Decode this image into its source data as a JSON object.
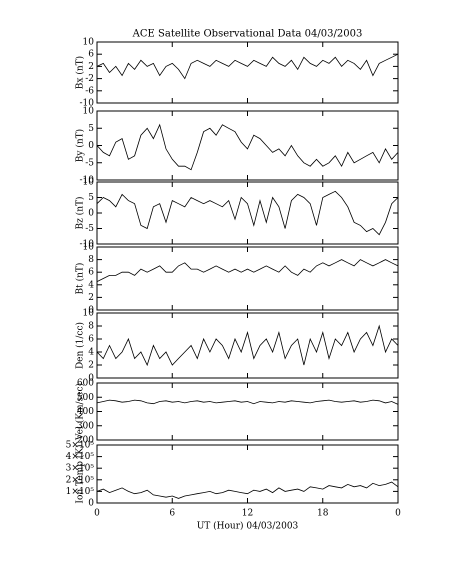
{
  "chart_data": [
    {
      "type": "line",
      "title": "ACE Satellite Observational Data   04/03/2003",
      "ylabel": "Bx (nT)",
      "xlim": [
        0,
        24
      ],
      "xticks": [
        0,
        6,
        12,
        18,
        {
          "value": 24,
          "label": "0"
        }
      ],
      "ylim": [
        -10,
        10
      ],
      "yticks": [
        -10,
        -6,
        -2,
        2,
        6,
        10
      ],
      "color": "#000000",
      "x": [
        0,
        0.5,
        1,
        1.5,
        2,
        2.5,
        3,
        3.5,
        4,
        4.5,
        5,
        5.5,
        6,
        6.5,
        7,
        7.5,
        8,
        8.5,
        9,
        9.5,
        10,
        10.5,
        11,
        11.5,
        12,
        12.5,
        13,
        13.5,
        14,
        14.5,
        15,
        15.5,
        16,
        16.5,
        17,
        17.5,
        18,
        18.5,
        19,
        19.5,
        20,
        20.5,
        21,
        21.5,
        22,
        22.5,
        23,
        23.5,
        24
      ],
      "values": [
        2,
        3,
        0,
        2,
        -1,
        3,
        1,
        4,
        2,
        3,
        -1,
        2,
        3,
        1,
        -2,
        3,
        4,
        3,
        2,
        4,
        3,
        2,
        4,
        3,
        2,
        4,
        3,
        2,
        5,
        3,
        2,
        4,
        1,
        5,
        3,
        2,
        4,
        3,
        5,
        2,
        4,
        3,
        1,
        4,
        -1,
        3,
        4,
        5,
        6
      ]
    },
    {
      "type": "line",
      "ylabel": "By (nT)",
      "xlim": [
        0,
        24
      ],
      "xticks": [
        0,
        6,
        12,
        18,
        {
          "value": 24,
          "label": "0"
        }
      ],
      "ylim": [
        -10,
        10
      ],
      "yticks": [
        -10,
        -5,
        0,
        5,
        10
      ],
      "color": "#000000",
      "x": [
        0,
        0.5,
        1,
        1.5,
        2,
        2.5,
        3,
        3.5,
        4,
        4.5,
        5,
        5.5,
        6,
        6.5,
        7,
        7.5,
        8,
        8.5,
        9,
        9.5,
        10,
        10.5,
        11,
        11.5,
        12,
        12.5,
        13,
        13.5,
        14,
        14.5,
        15,
        15.5,
        16,
        16.5,
        17,
        17.5,
        18,
        18.5,
        19,
        19.5,
        20,
        20.5,
        21,
        21.5,
        22,
        22.5,
        23,
        23.5,
        24
      ],
      "values": [
        0,
        -2,
        -3,
        1,
        2,
        -4,
        -3,
        3,
        5,
        2,
        6,
        -1,
        -4,
        -6,
        -6,
        -7,
        -2,
        4,
        5,
        3,
        6,
        5,
        4,
        1,
        -1,
        3,
        2,
        0,
        -2,
        -1,
        -3,
        0,
        -3,
        -5,
        -6,
        -4,
        -6,
        -5,
        -3,
        -6,
        -2,
        -5,
        -4,
        -3,
        -2,
        -5,
        -1,
        -4,
        -2
      ]
    },
    {
      "type": "line",
      "ylabel": "Bz (nT)",
      "xlim": [
        0,
        24
      ],
      "xticks": [
        0,
        6,
        12,
        18,
        {
          "value": 24,
          "label": "0"
        }
      ],
      "ylim": [
        -10,
        10
      ],
      "yticks": [
        -10,
        -5,
        0,
        5,
        10
      ],
      "color": "#000000",
      "x": [
        0,
        0.5,
        1,
        1.5,
        2,
        2.5,
        3,
        3.5,
        4,
        4.5,
        5,
        5.5,
        6,
        6.5,
        7,
        7.5,
        8,
        8.5,
        9,
        9.5,
        10,
        10.5,
        11,
        11.5,
        12,
        12.5,
        13,
        13.5,
        14,
        14.5,
        15,
        15.5,
        16,
        16.5,
        17,
        17.5,
        18,
        18.5,
        19,
        19.5,
        20,
        20.5,
        21,
        21.5,
        22,
        22.5,
        23,
        23.5,
        24
      ],
      "values": [
        3,
        5,
        4,
        2,
        6,
        4,
        3,
        -4,
        -5,
        2,
        3,
        -3,
        4,
        3,
        2,
        5,
        4,
        3,
        4,
        3,
        2,
        4,
        -2,
        5,
        3,
        -4,
        4,
        -3,
        5,
        2,
        -5,
        4,
        6,
        5,
        3,
        -4,
        5,
        6,
        7,
        5,
        2,
        -3,
        -4,
        -6,
        -5,
        -7,
        -3,
        3,
        5
      ]
    },
    {
      "type": "line",
      "ylabel": "Bt (nT)",
      "xlim": [
        0,
        24
      ],
      "xticks": [
        0,
        6,
        12,
        18,
        {
          "value": 24,
          "label": "0"
        }
      ],
      "ylim": [
        0,
        10
      ],
      "yticks": [
        0,
        2,
        4,
        6,
        8,
        10
      ],
      "color": "#000000",
      "x": [
        0,
        0.5,
        1,
        1.5,
        2,
        2.5,
        3,
        3.5,
        4,
        4.5,
        5,
        5.5,
        6,
        6.5,
        7,
        7.5,
        8,
        8.5,
        9,
        9.5,
        10,
        10.5,
        11,
        11.5,
        12,
        12.5,
        13,
        13.5,
        14,
        14.5,
        15,
        15.5,
        16,
        16.5,
        17,
        17.5,
        18,
        18.5,
        19,
        19.5,
        20,
        20.5,
        21,
        21.5,
        22,
        22.5,
        23,
        23.5,
        24
      ],
      "values": [
        4.5,
        5,
        5.5,
        5.5,
        6,
        6,
        5.5,
        6.5,
        6,
        6.5,
        7,
        6,
        6,
        7,
        7.5,
        6.5,
        6.5,
        6,
        6.5,
        7,
        6.5,
        6,
        6.5,
        6,
        6.5,
        6,
        6.5,
        7,
        6.5,
        6,
        7,
        6,
        5.5,
        6.5,
        6,
        7,
        7.5,
        7,
        7.5,
        8,
        7.5,
        7,
        8,
        7.5,
        7,
        7.5,
        8,
        7.5,
        7
      ]
    },
    {
      "type": "line",
      "ylabel": "Den (1/cc)",
      "xlim": [
        0,
        24
      ],
      "xticks": [
        0,
        6,
        12,
        18,
        {
          "value": 24,
          "label": "0"
        }
      ],
      "ylim": [
        0,
        10
      ],
      "yticks": [
        0,
        2,
        4,
        6,
        8,
        10
      ],
      "color": "#000000",
      "x": [
        0,
        0.5,
        1,
        1.5,
        2,
        2.5,
        3,
        3.5,
        4,
        4.5,
        5,
        5.5,
        6,
        6.5,
        7,
        7.5,
        8,
        8.5,
        9,
        9.5,
        10,
        10.5,
        11,
        11.5,
        12,
        12.5,
        13,
        13.5,
        14,
        14.5,
        15,
        15.5,
        16,
        16.5,
        17,
        17.5,
        18,
        18.5,
        19,
        19.5,
        20,
        20.5,
        21,
        21.5,
        22,
        22.5,
        23,
        23.5,
        24
      ],
      "values": [
        4,
        3,
        5,
        3,
        4,
        6,
        3,
        4,
        2,
        5,
        3,
        4,
        2,
        3,
        4,
        5,
        3,
        6,
        4,
        6,
        5,
        3,
        6,
        4,
        7,
        3,
        5,
        6,
        4,
        7,
        3,
        5,
        6,
        2,
        6,
        4,
        7,
        3,
        6,
        5,
        7,
        4,
        6,
        7,
        5,
        8,
        4,
        6,
        5
      ]
    },
    {
      "type": "line",
      "ylabel": "Vel (Km/sec)",
      "xlim": [
        0,
        24
      ],
      "xticks": [
        0,
        6,
        12,
        18,
        {
          "value": 24,
          "label": "0"
        }
      ],
      "ylim": [
        200,
        600
      ],
      "yticks": [
        200,
        300,
        400,
        500,
        600
      ],
      "color": "#000000",
      "x": [
        0,
        0.5,
        1,
        1.5,
        2,
        2.5,
        3,
        3.5,
        4,
        4.5,
        5,
        5.5,
        6,
        6.5,
        7,
        7.5,
        8,
        8.5,
        9,
        9.5,
        10,
        10.5,
        11,
        11.5,
        12,
        12.5,
        13,
        13.5,
        14,
        14.5,
        15,
        15.5,
        16,
        16.5,
        17,
        17.5,
        18,
        18.5,
        19,
        19.5,
        20,
        20.5,
        21,
        21.5,
        22,
        22.5,
        23,
        23.5,
        24
      ],
      "values": [
        460,
        470,
        480,
        475,
        465,
        470,
        480,
        475,
        460,
        455,
        470,
        475,
        465,
        470,
        460,
        470,
        475,
        465,
        470,
        460,
        465,
        470,
        475,
        465,
        470,
        455,
        470,
        465,
        460,
        470,
        465,
        475,
        470,
        465,
        460,
        470,
        475,
        480,
        470,
        465,
        470,
        475,
        465,
        470,
        480,
        475,
        460,
        470,
        450
      ]
    },
    {
      "type": "line",
      "ylabel": "Ion Temp (K)",
      "xlabel": "UT (Hour)   04/03/2003",
      "xlim": [
        0,
        24
      ],
      "xticks": [
        0,
        6,
        12,
        18,
        {
          "value": 24,
          "label": "0"
        }
      ],
      "ylim": [
        0,
        500000
      ],
      "yticks": [
        0,
        {
          "value": 100000,
          "label": "1×10⁵"
        },
        {
          "value": 200000,
          "label": "2×10⁵"
        },
        {
          "value": 300000,
          "label": "3×10⁵"
        },
        {
          "value": 400000,
          "label": "4×10⁵"
        },
        {
          "value": 500000,
          "label": "5×10⁵"
        }
      ],
      "color": "#000000",
      "x": [
        0,
        0.5,
        1,
        1.5,
        2,
        2.5,
        3,
        3.5,
        4,
        4.5,
        5,
        5.5,
        6,
        6.5,
        7,
        7.5,
        8,
        8.5,
        9,
        9.5,
        10,
        10.5,
        11,
        11.5,
        12,
        12.5,
        13,
        13.5,
        14,
        14.5,
        15,
        15.5,
        16,
        16.5,
        17,
        17.5,
        18,
        18.5,
        19,
        19.5,
        20,
        20.5,
        21,
        21.5,
        22,
        22.5,
        23,
        23.5,
        24
      ],
      "values": [
        100000,
        120000,
        90000,
        110000,
        130000,
        100000,
        80000,
        90000,
        110000,
        70000,
        60000,
        50000,
        60000,
        40000,
        60000,
        70000,
        80000,
        90000,
        100000,
        80000,
        90000,
        110000,
        100000,
        90000,
        80000,
        110000,
        100000,
        120000,
        90000,
        130000,
        100000,
        110000,
        120000,
        100000,
        140000,
        130000,
        120000,
        150000,
        140000,
        130000,
        160000,
        140000,
        150000,
        130000,
        170000,
        150000,
        160000,
        180000,
        140000
      ]
    }
  ]
}
